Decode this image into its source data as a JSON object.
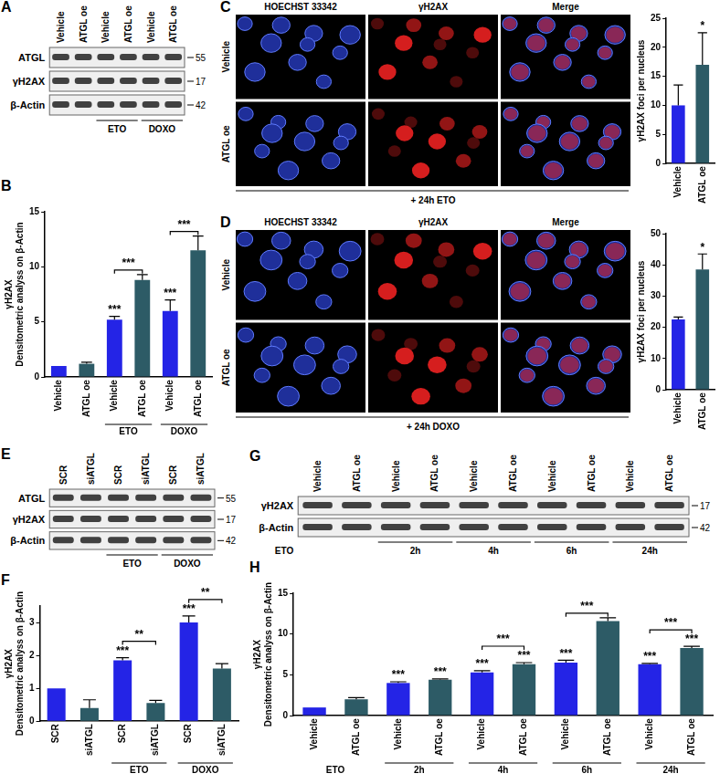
{
  "blots": [
    {
      "panel": "A",
      "lanes": [
        "Vehicle",
        "ATGL oe",
        "Vehicle",
        "ATGL oe",
        "Vehicle",
        "ATGL oe"
      ],
      "rows": [
        {
          "label": "ATGL",
          "mw": 55
        },
        {
          "label": "γH2AX",
          "mw": 17
        },
        {
          "label": "β-Actin",
          "mw": 42
        }
      ],
      "groups": [
        {
          "label": "ETO",
          "lanes": [
            2,
            3
          ]
        },
        {
          "label": "DOXO",
          "lanes": [
            4,
            5
          ]
        }
      ]
    },
    {
      "panel": "E",
      "lanes": [
        "SCR",
        "siATGL",
        "SCR",
        "siATGL",
        "SCR",
        "siATGL"
      ],
      "rows": [
        {
          "label": "ATGL",
          "mw": 55
        },
        {
          "label": "γH2AX",
          "mw": 17
        },
        {
          "label": "β-Actin",
          "mw": 42
        }
      ],
      "groups": [
        {
          "label": "ETO",
          "lanes": [
            2,
            3
          ]
        },
        {
          "label": "DOXO",
          "lanes": [
            4,
            5
          ]
        }
      ]
    },
    {
      "panel": "G",
      "lanes": [
        "Vehicle",
        "ATGL oe",
        "Vehicle",
        "ATGL oe",
        "Vehicle",
        "ATGL oe",
        "Vehicle",
        "ATGL oe",
        "Vehicle",
        "ATGL oe"
      ],
      "rows": [
        {
          "label": "γH2AX",
          "mw": 17
        },
        {
          "label": "β-Actin",
          "mw": 42
        }
      ],
      "group_title": "ETO",
      "groups": [
        {
          "label": "2h",
          "lanes": [
            2,
            3
          ]
        },
        {
          "label": "4h",
          "lanes": [
            4,
            5
          ]
        },
        {
          "label": "6h",
          "lanes": [
            6,
            7
          ]
        },
        {
          "label": "24h",
          "lanes": [
            8,
            9
          ]
        }
      ]
    }
  ],
  "micrographs": [
    {
      "panel": "C",
      "columns": [
        "HOECHST 33342",
        "γH2AX",
        "Merge"
      ],
      "rows": [
        "Vehicle",
        "ATGL oe"
      ],
      "caption": "+ 24h ETO"
    },
    {
      "panel": "D",
      "columns": [
        "HOECHST 33342",
        "γH2AX",
        "Merge"
      ],
      "rows": [
        "Vehicle",
        "ATGL oe"
      ],
      "caption": "+ 24h DOXO"
    }
  ],
  "chart_data": [
    {
      "panel": "B",
      "type": "bar",
      "categories": [
        "Vehicle",
        "ATGL oe",
        "Vehicle",
        "ATGL oe",
        "Vehicle",
        "ATGL oe"
      ],
      "values": [
        1,
        1.2,
        5.2,
        8.8,
        6.0,
        11.5
      ],
      "errors": [
        0,
        0.15,
        0.3,
        0.5,
        1.0,
        1.3
      ],
      "colors": [
        "#2424e6",
        "#2d5b66",
        "#2424e6",
        "#2d5b66",
        "#2424e6",
        "#2d5b66"
      ],
      "ylim": [
        0,
        15
      ],
      "yticks": [
        0,
        5,
        10,
        15
      ],
      "grid": false,
      "y_label": [
        "γH2AX",
        "Densitometric analyss on β-Actin"
      ],
      "groups": [
        {
          "label": "ETO",
          "bars": [
            2,
            3
          ]
        },
        {
          "label": "DOXO",
          "bars": [
            4,
            5
          ]
        }
      ],
      "annotations": [
        {
          "text": "***",
          "bars": [
            2
          ]
        },
        {
          "text": "***",
          "bars": [
            2,
            3
          ]
        },
        {
          "text": "***",
          "bars": [
            4
          ]
        },
        {
          "text": "***",
          "bars": [
            4,
            5
          ]
        }
      ]
    },
    {
      "panel": "C",
      "type": "bar",
      "categories": [
        "Vehicle",
        "ATGL oe"
      ],
      "values": [
        10,
        17
      ],
      "errors": [
        3.5,
        5.5
      ],
      "colors": [
        "#2424e6",
        "#2d5b66"
      ],
      "ylim": [
        0,
        25
      ],
      "yticks": [
        0,
        5,
        10,
        15,
        20,
        25
      ],
      "grid": false,
      "y_label": [
        "γH2AX foci per nucleus"
      ],
      "annotations": [
        {
          "text": "*",
          "bars": [
            1
          ]
        }
      ]
    },
    {
      "panel": "D",
      "type": "bar",
      "categories": [
        "Vehicle",
        "ATGL oe"
      ],
      "values": [
        22.5,
        38.5
      ],
      "errors": [
        0.8,
        5
      ],
      "colors": [
        "#2424e6",
        "#2d5b66"
      ],
      "ylim": [
        0,
        50
      ],
      "yticks": [
        0,
        10,
        20,
        30,
        40,
        50
      ],
      "grid": false,
      "y_label": [
        "γH2AX foci per nucleus"
      ],
      "annotations": [
        {
          "text": "*",
          "bars": [
            1
          ]
        }
      ]
    },
    {
      "panel": "F",
      "type": "bar",
      "categories": [
        "SCR",
        "siATGL",
        "SCR",
        "siATGL",
        "SCR",
        "siATGL"
      ],
      "values": [
        1,
        0.4,
        1.85,
        0.55,
        3.0,
        1.6
      ],
      "errors": [
        0,
        0.25,
        0.08,
        0.08,
        0.2,
        0.15
      ],
      "colors": [
        "#2424e6",
        "#2d5b66",
        "#2424e6",
        "#2d5b66",
        "#2424e6",
        "#2d5b66"
      ],
      "ylim": [
        0,
        3.5
      ],
      "yticks": [
        0,
        1,
        2,
        3
      ],
      "grid": false,
      "y_label": [
        "γH2AX",
        "Densitometric analyss on β-Actin"
      ],
      "groups": [
        {
          "label": "ETO",
          "bars": [
            2,
            3
          ]
        },
        {
          "label": "DOXO",
          "bars": [
            4,
            5
          ]
        }
      ],
      "annotations": [
        {
          "text": "***",
          "bars": [
            2
          ]
        },
        {
          "text": "**",
          "bars": [
            2,
            3
          ]
        },
        {
          "text": "***",
          "bars": [
            4
          ]
        },
        {
          "text": "**",
          "bars": [
            4,
            5
          ]
        }
      ]
    },
    {
      "panel": "H",
      "type": "bar",
      "categories": [
        "Vehicle",
        "ATGL oe",
        "Vehicle",
        "ATGL oe",
        "Vehicle",
        "ATGL oe",
        "Vehicle",
        "ATGL oe",
        "Vehicle",
        "ATGL oe"
      ],
      "values": [
        1,
        2.0,
        4.0,
        4.4,
        5.3,
        6.3,
        6.5,
        11.6,
        6.3,
        8.3
      ],
      "errors": [
        0,
        0.2,
        0.15,
        0.1,
        0.2,
        0.2,
        0.3,
        0.4,
        0.1,
        0.2
      ],
      "colors": [
        "#2424e6",
        "#2d5b66",
        "#2424e6",
        "#2d5b66",
        "#2424e6",
        "#2d5b66",
        "#2424e6",
        "#2d5b66",
        "#2424e6",
        "#2d5b66"
      ],
      "ylim": [
        0,
        15
      ],
      "yticks": [
        0,
        5,
        10,
        15
      ],
      "grid": false,
      "y_label": [
        "γH2AX",
        "Densitometric analyss on β-Actin"
      ],
      "group_title": "ETO",
      "groups": [
        {
          "label": "2h",
          "bars": [
            2,
            3
          ]
        },
        {
          "label": "4h",
          "bars": [
            4,
            5
          ]
        },
        {
          "label": "6h",
          "bars": [
            6,
            7
          ]
        },
        {
          "label": "24h",
          "bars": [
            8,
            9
          ]
        }
      ],
      "annotations": [
        {
          "text": "***",
          "bars": [
            2
          ]
        },
        {
          "text": "***",
          "bars": [
            3
          ]
        },
        {
          "text": "***",
          "bars": [
            4
          ]
        },
        {
          "text": "***",
          "bars": [
            5
          ]
        },
        {
          "text": "***",
          "bars": [
            6
          ]
        },
        {
          "text": "***",
          "bars": [
            8
          ]
        },
        {
          "text": "***",
          "bars": [
            9
          ]
        },
        {
          "text": "***",
          "bars": [
            4,
            5
          ]
        },
        {
          "text": "***",
          "bars": [
            6,
            7
          ]
        },
        {
          "text": "***",
          "bars": [
            8,
            9
          ]
        }
      ]
    }
  ]
}
